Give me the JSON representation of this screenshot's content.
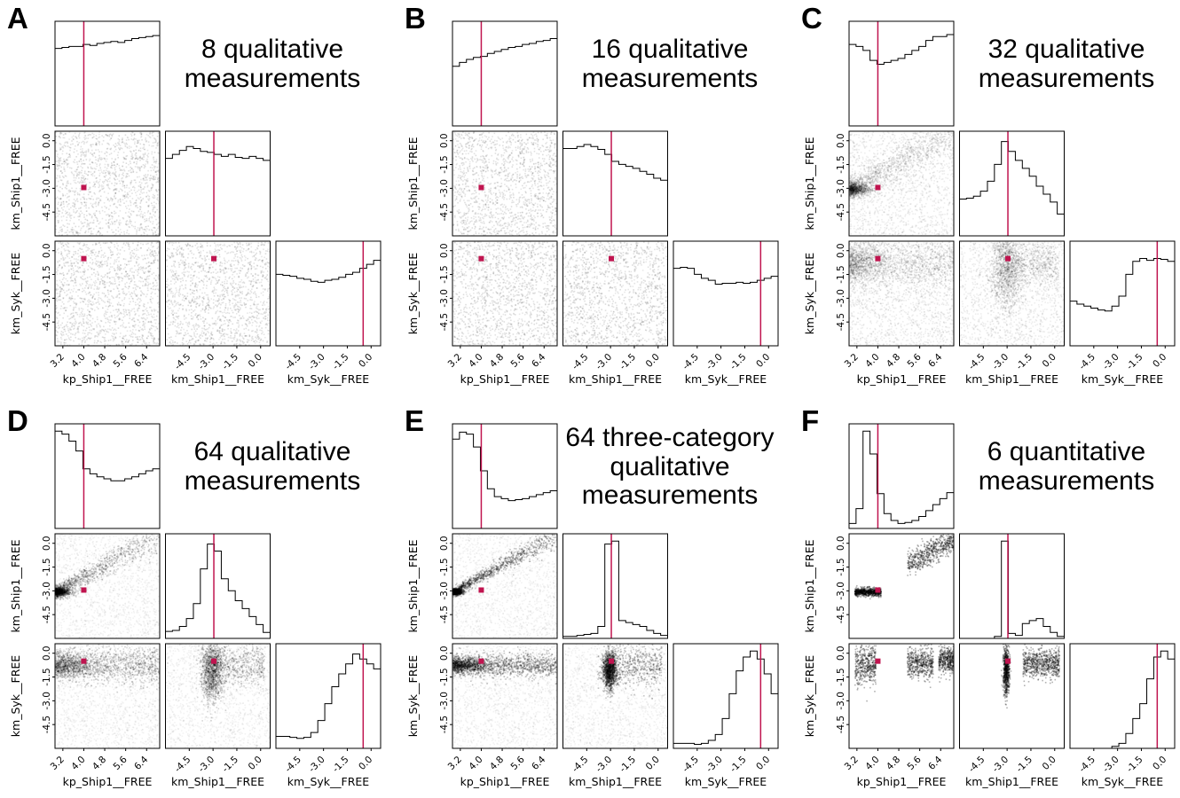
{
  "colors": {
    "truth": "#c0144f",
    "hist": "#000000",
    "frame": "#000000"
  },
  "axes": {
    "x_labels": [
      "kp_Ship1__FREE",
      "km_Ship1__FREE",
      "km_Syk__FREE"
    ],
    "y_labels": [
      "km_Ship1__FREE",
      "km_Syk__FREE"
    ],
    "kp_ticks": [
      "3.2",
      "4.0",
      "4.8",
      "5.6",
      "6.4"
    ],
    "km_ship_ticks": [
      "-4.5",
      "-3.0",
      "-1.5",
      "0.0"
    ],
    "km_syk_ticks": [
      "-4.5",
      "-3.0",
      "-1.5",
      "0.0"
    ],
    "y_ticks": [
      "0.0",
      "-1.5",
      "-3.0",
      "-4.5"
    ],
    "kp_range": [
      2.9,
      6.9
    ],
    "km_range": [
      -6.0,
      0.6
    ]
  },
  "truth": {
    "kp_Ship1__FREE": 4.0,
    "km_Ship1__FREE": -2.95,
    "km_Syk__FREE": -0.5
  },
  "panels": [
    {
      "label": "A",
      "title": "8 qualitative\nmeasurements",
      "chart_data": {
        "type": "corner",
        "hist_kp": [
          0.78,
          0.79,
          0.8,
          0.8,
          0.82,
          0.81,
          0.83,
          0.84,
          0.85,
          0.84,
          0.86,
          0.88,
          0.89,
          0.9,
          0.91
        ],
        "hist_km_ship1": [
          0.78,
          0.82,
          0.86,
          0.9,
          0.88,
          0.85,
          0.84,
          0.82,
          0.8,
          0.82,
          0.79,
          0.78,
          0.8,
          0.78,
          0.76
        ],
        "hist_km_syk": [
          0.72,
          0.71,
          0.7,
          0.68,
          0.67,
          0.65,
          0.64,
          0.66,
          0.67,
          0.69,
          0.72,
          0.74,
          0.78,
          0.82,
          0.86
        ],
        "density_ship1_vs_kp": "uniform",
        "density_syk_vs_kp": "uniform",
        "density_syk_vs_ship1": "uniform"
      }
    },
    {
      "label": "B",
      "title": "16 qualitative\nmeasurements",
      "chart_data": {
        "type": "corner",
        "hist_kp": [
          0.6,
          0.64,
          0.67,
          0.69,
          0.7,
          0.73,
          0.75,
          0.77,
          0.79,
          0.8,
          0.82,
          0.83,
          0.85,
          0.86,
          0.88
        ],
        "hist_km_ship1": [
          0.88,
          0.88,
          0.9,
          0.92,
          0.9,
          0.87,
          0.82,
          0.75,
          0.72,
          0.7,
          0.68,
          0.65,
          0.62,
          0.58,
          0.56
        ],
        "hist_km_syk": [
          0.78,
          0.79,
          0.78,
          0.72,
          0.68,
          0.66,
          0.62,
          0.63,
          0.63,
          0.64,
          0.63,
          0.64,
          0.66,
          0.68,
          0.7
        ],
        "density_ship1_vs_kp": "uniform",
        "density_syk_vs_kp": "uniform",
        "density_syk_vs_ship1": "uniform"
      }
    },
    {
      "label": "C",
      "title": "32 qualitative\nmeasurements",
      "chart_data": {
        "type": "corner",
        "hist_kp": [
          0.82,
          0.8,
          0.76,
          0.66,
          0.62,
          0.64,
          0.66,
          0.68,
          0.72,
          0.76,
          0.8,
          0.86,
          0.9,
          0.9,
          0.92
        ],
        "hist_km_ship1": [
          0.37,
          0.38,
          0.4,
          0.45,
          0.55,
          0.72,
          0.95,
          0.85,
          0.76,
          0.68,
          0.6,
          0.5,
          0.42,
          0.34,
          0.22
        ],
        "hist_km_syk": [
          0.45,
          0.42,
          0.4,
          0.38,
          0.36,
          0.35,
          0.4,
          0.5,
          0.72,
          0.85,
          0.88,
          0.86,
          0.88,
          0.87,
          0.85
        ],
        "density_ship1_vs_kp": "diagonal",
        "density_syk_vs_kp": "band",
        "density_syk_vs_ship1": "blob"
      }
    },
    {
      "label": "D",
      "title": "64 qualitative\nmeasurements",
      "chart_data": {
        "type": "corner",
        "hist_kp": [
          0.98,
          0.95,
          0.88,
          0.78,
          0.6,
          0.55,
          0.52,
          0.5,
          0.48,
          0.48,
          0.5,
          0.52,
          0.55,
          0.58,
          0.6
        ],
        "hist_km_ship1": [
          0.07,
          0.08,
          0.12,
          0.2,
          0.35,
          0.7,
          0.95,
          0.88,
          0.6,
          0.48,
          0.38,
          0.3,
          0.22,
          0.14,
          0.06
        ],
        "hist_km_syk": [
          0.12,
          0.12,
          0.11,
          0.1,
          0.11,
          0.16,
          0.28,
          0.45,
          0.62,
          0.75,
          0.85,
          0.95,
          0.9,
          0.85,
          0.8
        ],
        "density_ship1_vs_kp": "dense_diagonal",
        "density_syk_vs_kp": "dense_band",
        "density_syk_vs_ship1": "dense_column"
      }
    },
    {
      "label": "E",
      "title": "64 three-category\nqualitative\nmeasurements",
      "chart_data": {
        "type": "corner",
        "hist_kp": [
          0.9,
          0.97,
          0.95,
          0.82,
          0.58,
          0.4,
          0.32,
          0.3,
          0.28,
          0.29,
          0.3,
          0.32,
          0.34,
          0.36,
          0.38
        ],
        "hist_km_ship1": [
          0.02,
          0.02,
          0.03,
          0.04,
          0.05,
          0.12,
          0.95,
          0.98,
          0.18,
          0.16,
          0.14,
          0.12,
          0.08,
          0.05,
          0.03
        ],
        "hist_km_syk": [
          0.05,
          0.05,
          0.05,
          0.04,
          0.05,
          0.08,
          0.14,
          0.3,
          0.55,
          0.78,
          0.92,
          0.98,
          0.9,
          0.75,
          0.55
        ],
        "density_ship1_vs_kp": "tight_diagonal",
        "density_syk_vs_kp": "tight_band",
        "density_syk_vs_ship1": "tight_column"
      }
    },
    {
      "label": "F",
      "title": "6 quantitative\nmeasurements",
      "chart_data": {
        "type": "corner",
        "hist_kp": [
          0.05,
          0.2,
          0.98,
          0.75,
          0.35,
          0.15,
          0.08,
          0.05,
          0.06,
          0.08,
          0.12,
          0.18,
          0.24,
          0.3,
          0.36
        ],
        "hist_km_ship1": [
          0.0,
          0.0,
          0.0,
          0.0,
          0.0,
          0.02,
          0.98,
          0.05,
          0.03,
          0.15,
          0.18,
          0.2,
          0.12,
          0.06,
          0.02
        ],
        "hist_km_syk": [
          0.0,
          0.0,
          0.0,
          0.0,
          0.0,
          0.0,
          0.02,
          0.05,
          0.15,
          0.3,
          0.45,
          0.7,
          0.92,
          0.98,
          0.9
        ],
        "density_ship1_vs_kp": "clusters",
        "density_syk_vs_kp": "clusters_band",
        "density_syk_vs_ship1": "clusters_column"
      }
    }
  ]
}
